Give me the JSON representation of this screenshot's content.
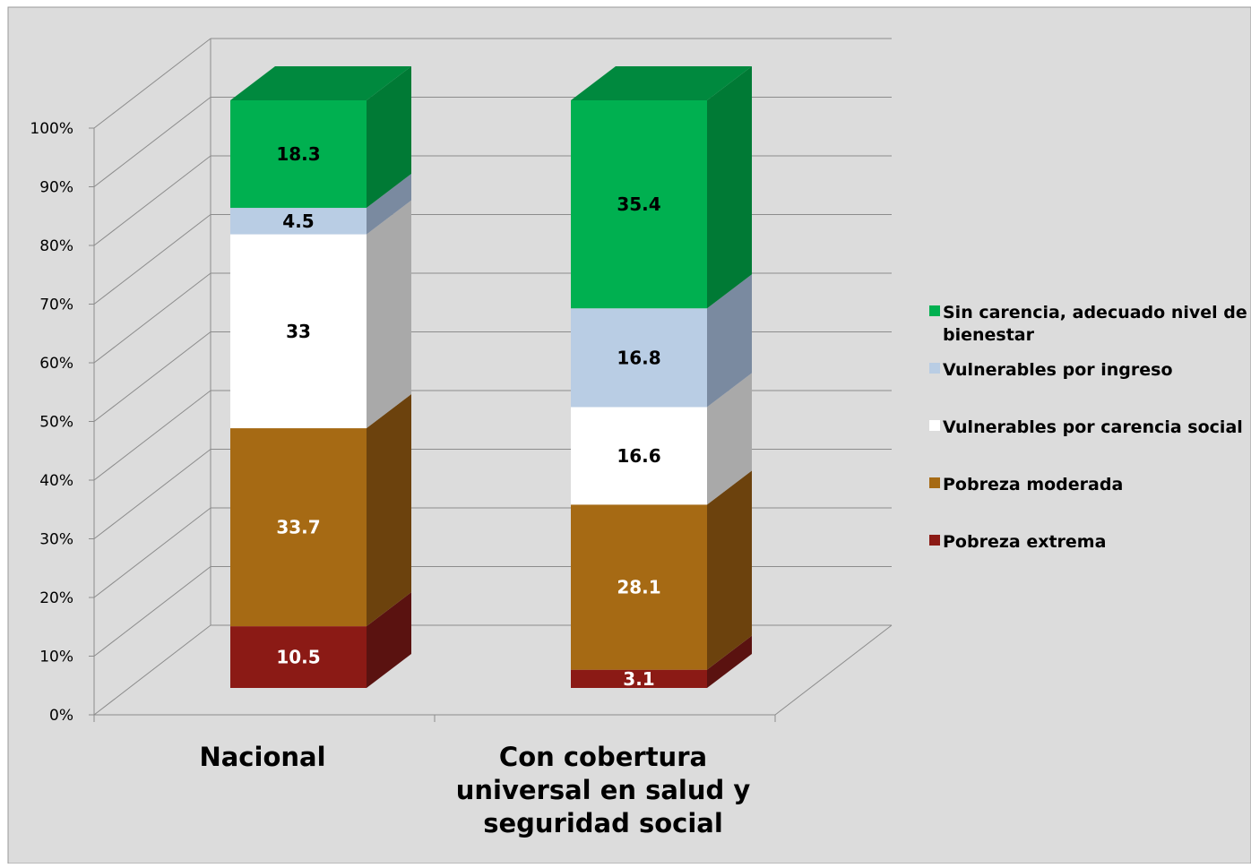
{
  "chart_data": {
    "type": "bar",
    "stacked": true,
    "percent_axis": true,
    "ylim": [
      0,
      100
    ],
    "yticks": [
      "0%",
      "10%",
      "20%",
      "30%",
      "40%",
      "50%",
      "60%",
      "70%",
      "80%",
      "90%",
      "100%"
    ],
    "categories": [
      [
        "Nacional"
      ],
      [
        "Con cobertura",
        "universal en salud y",
        "seguridad social"
      ]
    ],
    "series": [
      {
        "name": "Pobreza extrema",
        "values": [
          10.5,
          3.1
        ],
        "color": "#8b1a15",
        "side": "#5a1210",
        "label_color": "#ffffff"
      },
      {
        "name": "Pobreza moderada",
        "values": [
          33.7,
          28.1
        ],
        "color": "#a66a14",
        "side": "#6c420d",
        "label_color": "#ffffff"
      },
      {
        "name": "Vulnerables por carencia social",
        "values": [
          33,
          16.6
        ],
        "color": "#ffffff",
        "side": "#a9a9a9",
        "label_color": "#000000"
      },
      {
        "name": "Vulnerables por ingreso",
        "values": [
          4.5,
          16.8
        ],
        "color": "#b9cde4",
        "side": "#7a8aa0",
        "label_color": "#000000"
      },
      {
        "name": "Sin carencia, adecuado nivel de bienestar",
        "values": [
          18.3,
          35.4
        ],
        "color": "#00b050",
        "side": "#007a35",
        "top": "#00893e",
        "label_color": "#000000"
      }
    ],
    "legend_position": "right",
    "legend": [
      {
        "lines": [
          "Sin carencia, adecuado nivel de",
          "bienestar"
        ],
        "color": "#00b050"
      },
      {
        "lines": [
          "Vulnerables por ingreso"
        ],
        "color": "#b9cde4"
      },
      {
        "lines": [
          "Vulnerables por carencia social"
        ],
        "color": "#ffffff"
      },
      {
        "lines": [
          "Pobreza moderada"
        ],
        "color": "#a66a14"
      },
      {
        "lines": [
          "Pobreza extrema"
        ],
        "color": "#8b1a15"
      }
    ],
    "grid": true,
    "view": "3d",
    "background": "#dcdcdc"
  }
}
